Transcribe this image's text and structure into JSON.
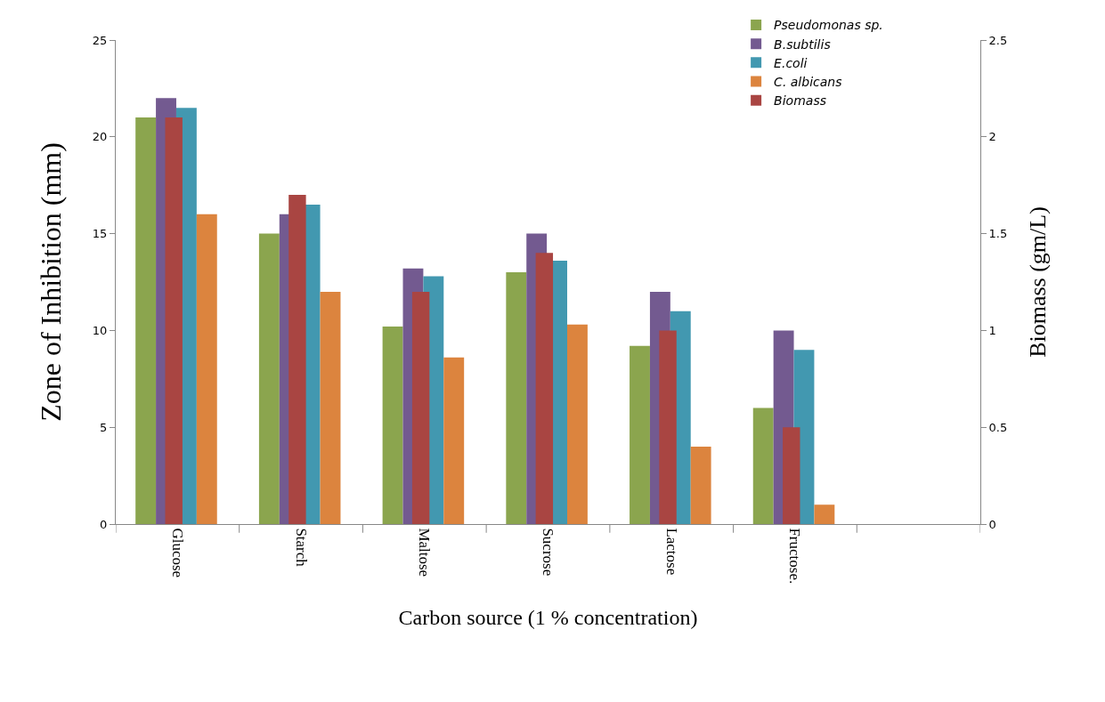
{
  "chart_data": {
    "type": "bar",
    "xlabel": "Carbon source (1 % concentration)",
    "ylabel": "Zone of Inhibition (mm)",
    "y2label": "Biomass (gm/L)",
    "categories": [
      "Glucose",
      "Starch",
      "Maltose",
      "Sucrose",
      "Lactose",
      "Fructose.",
      null
    ],
    "series": [
      {
        "name": "Pseudomonas sp.",
        "color": "#8ba54e",
        "values": [
          21,
          15,
          10.2,
          13,
          9.2,
          6,
          null
        ]
      },
      {
        "name": "B.subtilis",
        "color": "#735a90",
        "values": [
          22,
          16,
          13.2,
          15,
          12,
          10,
          null
        ]
      },
      {
        "name": "E.coli",
        "color": "#4298b0",
        "values": [
          21.5,
          16.5,
          12.8,
          13.6,
          11,
          9,
          null
        ]
      },
      {
        "name": "C. albicans",
        "color": "#dc843e",
        "values": [
          16,
          12,
          8.6,
          10.3,
          4,
          1,
          null
        ]
      },
      {
        "name": "Biomass",
        "color": "#a94542",
        "axis": "y2",
        "values": [
          2.1,
          1.7,
          1.2,
          1.4,
          1.0,
          0.5,
          null
        ]
      }
    ],
    "ylim": [
      0,
      25
    ],
    "yticks": [
      0,
      5,
      10,
      15,
      20,
      25
    ],
    "y2lim": [
      0,
      2.5
    ],
    "y2ticks": [
      0,
      0.5,
      1,
      1.5,
      2,
      2.5
    ],
    "legend": "top right"
  }
}
